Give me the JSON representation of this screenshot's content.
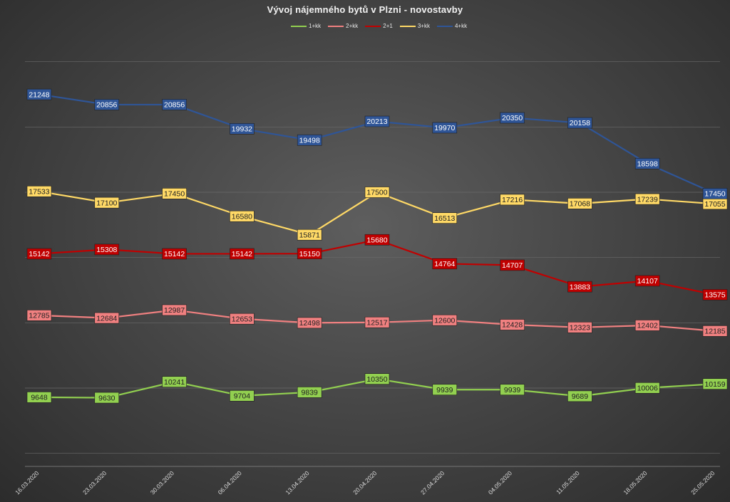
{
  "chart_data": {
    "type": "line",
    "title": "Vývoj nájemného bytů v Plzni - novostavby",
    "categories": [
      "16.03.2020",
      "23.03.2020",
      "30.03.2020",
      "06.04.2020",
      "13.04.2020",
      "20.04.2020",
      "27.04.2020",
      "04.05.2020",
      "11.05.2020",
      "18.05.2020",
      "25.05.2020"
    ],
    "series": [
      {
        "name": "1+kk",
        "color": "#92d050",
        "label_text_color": "#222222",
        "values": [
          9648,
          9630,
          10241,
          9704,
          9839,
          10350,
          9939,
          9939,
          9689,
          10006,
          10159
        ]
      },
      {
        "name": "2+kk",
        "color": "#f08080",
        "label_text_color": "#222222",
        "values": [
          12785,
          12684,
          12987,
          12653,
          12498,
          12517,
          12600,
          12428,
          12323,
          12402,
          12185
        ]
      },
      {
        "name": "2+1",
        "color": "#c00000",
        "label_text_color": "#ffffff",
        "values": [
          15142,
          15308,
          15142,
          15142,
          15150,
          15680,
          14764,
          14707,
          13883,
          14107,
          13575
        ]
      },
      {
        "name": "3+kk",
        "color": "#ffd966",
        "label_text_color": "#222222",
        "values": [
          17533,
          17100,
          17450,
          16580,
          15871,
          17500,
          16513,
          17216,
          17068,
          17239,
          17055
        ]
      },
      {
        "name": "4+kk",
        "color": "#2f5597",
        "label_text_color": "#ffffff",
        "values": [
          21248,
          20856,
          20856,
          19932,
          19498,
          20213,
          19970,
          20350,
          20158,
          18598,
          17450
        ]
      }
    ],
    "ylim": [
      7000,
      23500
    ],
    "gridlines": true,
    "legend_position": "top-center",
    "y_tick_labels_shown": false
  }
}
